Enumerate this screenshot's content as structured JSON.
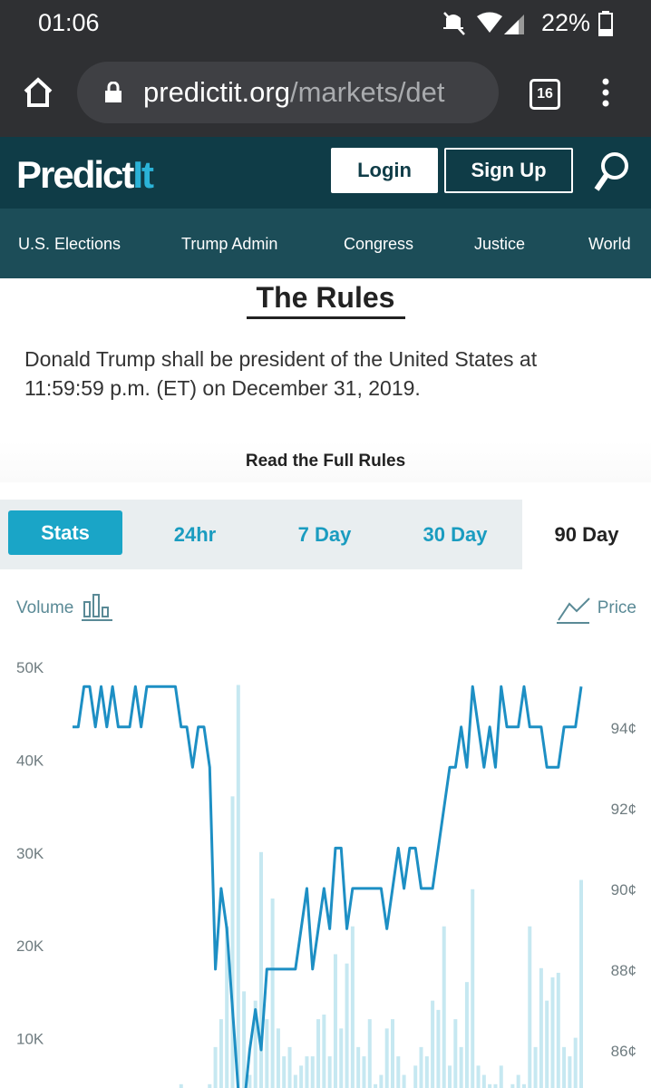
{
  "status_bar": {
    "time": "01:06",
    "battery": "22%"
  },
  "browser": {
    "url_host": "predictit.org",
    "url_path": "/markets/det",
    "tab_count": "16"
  },
  "header": {
    "logo_main": "Predict",
    "logo_accent": "It",
    "buttons": [
      "Login",
      "Sign Up"
    ]
  },
  "nav": [
    "U.S. Elections",
    "Trump Admin",
    "Congress",
    "Justice",
    "World"
  ],
  "rules": {
    "title": "The Rules",
    "text": "Donald Trump shall be president of the United States at 11:59:59 p.m. (ET) on December 31, 2019.",
    "link": "Read the Full Rules"
  },
  "tabs": [
    "Stats",
    "24hr",
    "7 Day",
    "30 Day",
    "90 Day"
  ],
  "chart_data": {
    "type": "bar_line",
    "series": [
      {
        "name": "Volume",
        "type": "bar",
        "color": "#c6e8f1",
        "values": [
          2000,
          1500,
          2500,
          1000,
          2000,
          1500,
          3000,
          2000,
          1000,
          2500,
          2000,
          1500,
          3000,
          2000,
          1000,
          2500,
          3000,
          2000,
          1500,
          5000,
          3000,
          2000,
          4000,
          3500,
          5000,
          9000,
          12000,
          22000,
          36000,
          48000,
          15000,
          6000,
          14000,
          30000,
          12000,
          25000,
          11000,
          8000,
          9000,
          6000,
          7000,
          8000,
          8000,
          12000,
          12500,
          8000,
          19000,
          11000,
          18000,
          22000,
          9000,
          8000,
          12000,
          5000,
          6000,
          11000,
          12000,
          8000,
          6000,
          4000,
          7000,
          9000,
          8000,
          14000,
          13000,
          22000,
          7000,
          12000,
          9000,
          16000,
          26000,
          7000,
          6000,
          5000,
          5000,
          7000,
          4000,
          5000,
          6000,
          5000,
          22000,
          9000,
          17500,
          14000,
          16500,
          17000,
          9000,
          8000,
          10000,
          27000
        ]
      },
      {
        "name": "Price",
        "type": "line",
        "axis": "y2",
        "color": "#1d8fc4",
        "values": [
          94,
          94,
          95,
          95,
          94,
          95,
          94,
          95,
          94,
          94,
          94,
          95,
          94,
          95,
          95,
          95,
          95,
          95,
          95,
          94,
          94,
          93,
          94,
          94,
          93,
          88,
          90,
          89,
          87,
          85,
          84.6,
          86,
          87,
          86,
          88,
          88,
          88,
          88,
          88,
          88,
          89,
          90,
          88,
          89,
          90,
          89,
          91,
          91,
          89,
          90,
          90,
          90,
          90,
          90,
          90,
          89,
          90,
          91,
          90,
          91,
          91,
          90,
          90,
          90,
          91,
          92,
          93,
          93,
          94,
          93,
          95,
          94,
          93,
          94,
          93,
          95,
          94,
          94,
          94,
          95,
          94,
          94,
          94,
          93,
          93,
          93,
          94,
          94,
          94,
          95
        ]
      }
    ],
    "ylim": [
      0,
      50000
    ],
    "yticks": [
      {
        "value": 10000,
        "label": "10K"
      },
      {
        "value": 20000,
        "label": "20K"
      },
      {
        "value": 30000,
        "label": "30K"
      },
      {
        "value": 40000,
        "label": "40K"
      },
      {
        "value": 50000,
        "label": "50K"
      }
    ],
    "y2lim": [
      84,
      95.5
    ],
    "y2ticks": [
      {
        "value": 86,
        "label": "86¢"
      },
      {
        "value": 88,
        "label": "88¢"
      },
      {
        "value": 90,
        "label": "90¢"
      },
      {
        "value": 92,
        "label": "92¢"
      },
      {
        "value": 94,
        "label": "94¢"
      }
    ]
  }
}
